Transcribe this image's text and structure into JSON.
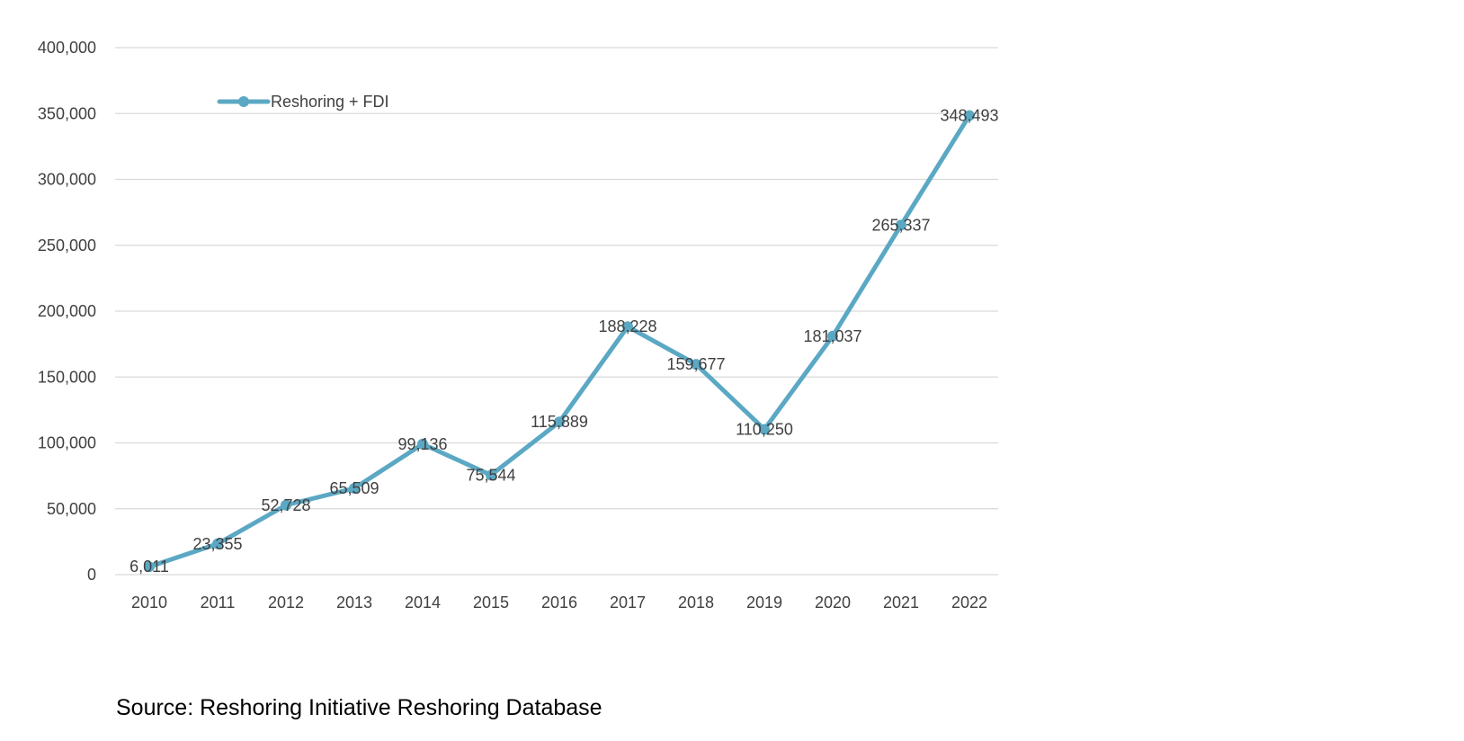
{
  "chart_data": {
    "type": "line",
    "categories": [
      "2010",
      "2011",
      "2012",
      "2013",
      "2014",
      "2015",
      "2016",
      "2017",
      "2018",
      "2019",
      "2020",
      "2021",
      "2022"
    ],
    "series": [
      {
        "name": "Reshoring + FDI",
        "values": [
          6011,
          23355,
          52728,
          65509,
          99136,
          75544,
          115889,
          188228,
          159677,
          110250,
          181037,
          265337,
          348493
        ],
        "data_labels": [
          "6,011",
          "23,355",
          "52,728",
          "65,509",
          "99,136",
          "75,544",
          "115,889",
          "188,228",
          "159,677",
          "110,250",
          "181,037",
          "265,337",
          "348,493"
        ],
        "color": "#5BA8C4"
      }
    ],
    "title": "",
    "xlabel": "",
    "ylabel": "",
    "ylim": [
      0,
      400000
    ],
    "yticks": [
      0,
      50000,
      100000,
      150000,
      200000,
      250000,
      300000,
      350000,
      400000
    ],
    "ytick_labels": [
      "0",
      "50,000",
      "100,000",
      "150,000",
      "200,000",
      "250,000",
      "300,000",
      "350,000",
      "400,000"
    ],
    "grid": true,
    "legend_position": "top-left",
    "gridline_color": "#D9D9D9",
    "axis_text_color": "#404040"
  },
  "source_text": "Source: Reshoring Initiative Reshoring Database"
}
